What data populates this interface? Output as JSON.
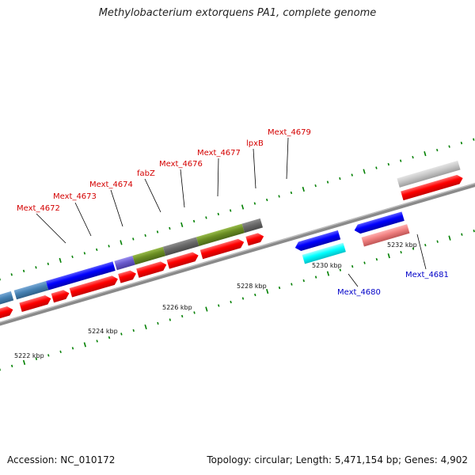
{
  "header": {
    "title": "Methylobacterium extorquens PA1, complete genome"
  },
  "footer": {
    "accession": "Accession: NC_010172",
    "topology": "Topology: circular; Length: 5,471,154 bp; Genes: 4,902"
  },
  "colors": {
    "cds_red": "#ff0000",
    "steelblue": "#4682b4",
    "blue": "#0000ff",
    "olive": "#6b8e23",
    "gray": "#696969",
    "slate": "#6a5acd",
    "cyan": "#00ffff",
    "salmon": "#f08080",
    "silver": "#c8c8c8",
    "tick_green": "#008000",
    "backbone": "#808080",
    "label_red": "#d40000",
    "label_blue": "#0000c8"
  },
  "kbp_labels": [
    "5222 kbp",
    "5224 kbp",
    "5226 kbp",
    "5228 kbp",
    "5230 kbp",
    "5232 kbp"
  ],
  "gene_labels_forward": [
    "Mext_4672",
    "Mext_4673",
    "Mext_4674",
    "fabZ",
    "Mext_4676",
    "Mext_4677",
    "lpxB",
    "Mext_4679"
  ],
  "gene_labels_reverse": [
    "Mext_4680",
    "Mext_4681"
  ]
}
